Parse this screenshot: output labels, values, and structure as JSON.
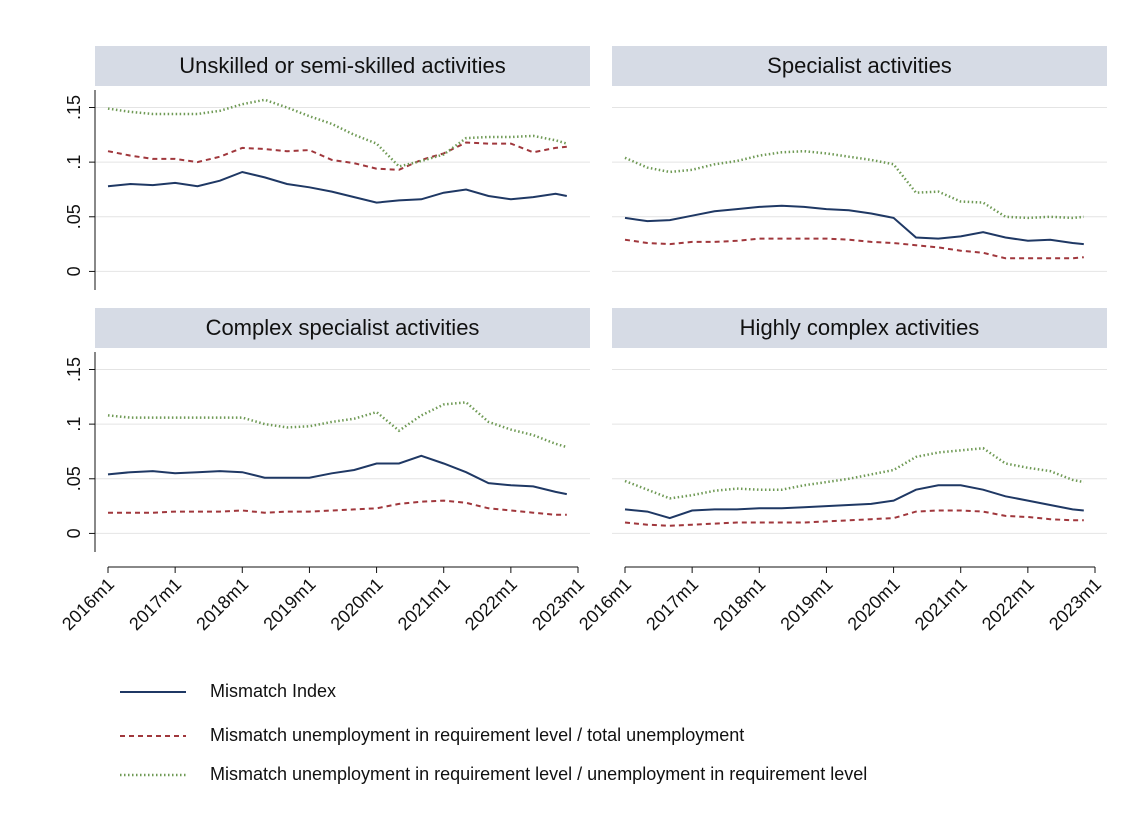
{
  "chart_data": {
    "type": "line",
    "x": [
      "2016m1",
      "2016m5",
      "2016m9",
      "2017m1",
      "2017m5",
      "2017m9",
      "2018m1",
      "2018m5",
      "2018m9",
      "2019m1",
      "2019m5",
      "2019m9",
      "2020m1",
      "2020m5",
      "2020m9",
      "2021m1",
      "2021m5",
      "2021m9",
      "2022m1",
      "2022m5",
      "2022m9",
      "2022m11"
    ],
    "xlim": [
      "2016m1",
      "2023m1"
    ],
    "xticks": [
      "2016m1",
      "2017m1",
      "2018m1",
      "2019m1",
      "2020m1",
      "2021m1",
      "2022m1",
      "2023m1"
    ],
    "ylim": [
      -0.017,
      0.166
    ],
    "yticks": [
      0,
      {
        "value": 0.05,
        "label": ".05"
      },
      {
        "value": 0.1,
        "label": ".1"
      },
      {
        "value": 0.15,
        "label": ".15"
      }
    ],
    "grid": true,
    "series": [
      {
        "name": "Mismatch Index",
        "color": "#1f3864",
        "style": "solid"
      },
      {
        "name": "Mismatch unemployment in requirement level / total unemployment",
        "color": "#a0373c",
        "style": "dashed"
      },
      {
        "name": "Mismatch unemployment in requirement level / unemployment in requirement level",
        "color": "#6f9a55",
        "style": "dotted"
      }
    ],
    "panels": [
      {
        "title": "Unskilled or semi-skilled activities",
        "series": [
          {
            "values": [
              0.078,
              0.08,
              0.079,
              0.081,
              0.078,
              0.083,
              0.091,
              0.086,
              0.08,
              0.077,
              0.073,
              0.068,
              0.063,
              0.065,
              0.066,
              0.072,
              0.075,
              0.069,
              0.066,
              0.068,
              0.071,
              0.069
            ]
          },
          {
            "values": [
              0.11,
              0.106,
              0.103,
              0.103,
              0.1,
              0.105,
              0.113,
              0.112,
              0.11,
              0.111,
              0.102,
              0.099,
              0.094,
              0.093,
              0.102,
              0.108,
              0.118,
              0.117,
              0.117,
              0.109,
              0.113,
              0.114
            ]
          },
          {
            "values": [
              0.149,
              0.146,
              0.144,
              0.144,
              0.144,
              0.147,
              0.153,
              0.157,
              0.15,
              0.142,
              0.135,
              0.125,
              0.117,
              0.096,
              0.101,
              0.107,
              0.122,
              0.123,
              0.123,
              0.124,
              0.12,
              0.117
            ]
          }
        ]
      },
      {
        "title": "Specialist activities",
        "series": [
          {
            "values": [
              0.049,
              0.046,
              0.047,
              0.051,
              0.055,
              0.057,
              0.059,
              0.06,
              0.059,
              0.057,
              0.056,
              0.053,
              0.049,
              0.031,
              0.03,
              0.032,
              0.036,
              0.031,
              0.028,
              0.029,
              0.026,
              0.025
            ]
          },
          {
            "values": [
              0.029,
              0.026,
              0.025,
              0.027,
              0.027,
              0.028,
              0.03,
              0.03,
              0.03,
              0.03,
              0.029,
              0.027,
              0.026,
              0.024,
              0.022,
              0.019,
              0.017,
              0.012,
              0.012,
              0.012,
              0.012,
              0.013
            ]
          },
          {
            "values": [
              0.104,
              0.095,
              0.091,
              0.093,
              0.098,
              0.101,
              0.106,
              0.109,
              0.11,
              0.108,
              0.105,
              0.102,
              0.098,
              0.072,
              0.073,
              0.064,
              0.063,
              0.05,
              0.049,
              0.05,
              0.049,
              0.05
            ]
          }
        ]
      },
      {
        "title": "Complex specialist activities",
        "series": [
          {
            "values": [
              0.054,
              0.056,
              0.057,
              0.055,
              0.056,
              0.057,
              0.056,
              0.051,
              0.051,
              0.051,
              0.055,
              0.058,
              0.064,
              0.064,
              0.071,
              0.064,
              0.056,
              0.046,
              0.044,
              0.043,
              0.038,
              0.036
            ]
          },
          {
            "values": [
              0.019,
              0.019,
              0.019,
              0.02,
              0.02,
              0.02,
              0.021,
              0.019,
              0.02,
              0.02,
              0.021,
              0.022,
              0.023,
              0.027,
              0.029,
              0.03,
              0.028,
              0.023,
              0.021,
              0.019,
              0.017,
              0.017
            ]
          },
          {
            "values": [
              0.108,
              0.106,
              0.106,
              0.106,
              0.106,
              0.106,
              0.106,
              0.1,
              0.097,
              0.098,
              0.102,
              0.105,
              0.111,
              0.094,
              0.108,
              0.118,
              0.12,
              0.102,
              0.095,
              0.09,
              0.082,
              0.079
            ]
          }
        ]
      },
      {
        "title": "Highly complex activities",
        "series": [
          {
            "values": [
              0.022,
              0.02,
              0.014,
              0.021,
              0.022,
              0.022,
              0.023,
              0.023,
              0.024,
              0.025,
              0.026,
              0.027,
              0.03,
              0.04,
              0.044,
              0.044,
              0.04,
              0.034,
              0.03,
              0.026,
              0.022,
              0.021
            ]
          },
          {
            "values": [
              0.01,
              0.008,
              0.007,
              0.008,
              0.009,
              0.01,
              0.01,
              0.01,
              0.01,
              0.011,
              0.012,
              0.013,
              0.014,
              0.02,
              0.021,
              0.021,
              0.02,
              0.016,
              0.015,
              0.013,
              0.012,
              0.012
            ]
          },
          {
            "values": [
              0.048,
              0.04,
              0.032,
              0.035,
              0.039,
              0.041,
              0.04,
              0.04,
              0.044,
              0.047,
              0.05,
              0.054,
              0.058,
              0.07,
              0.074,
              0.076,
              0.078,
              0.064,
              0.06,
              0.057,
              0.049,
              0.047
            ]
          }
        ]
      }
    ]
  }
}
